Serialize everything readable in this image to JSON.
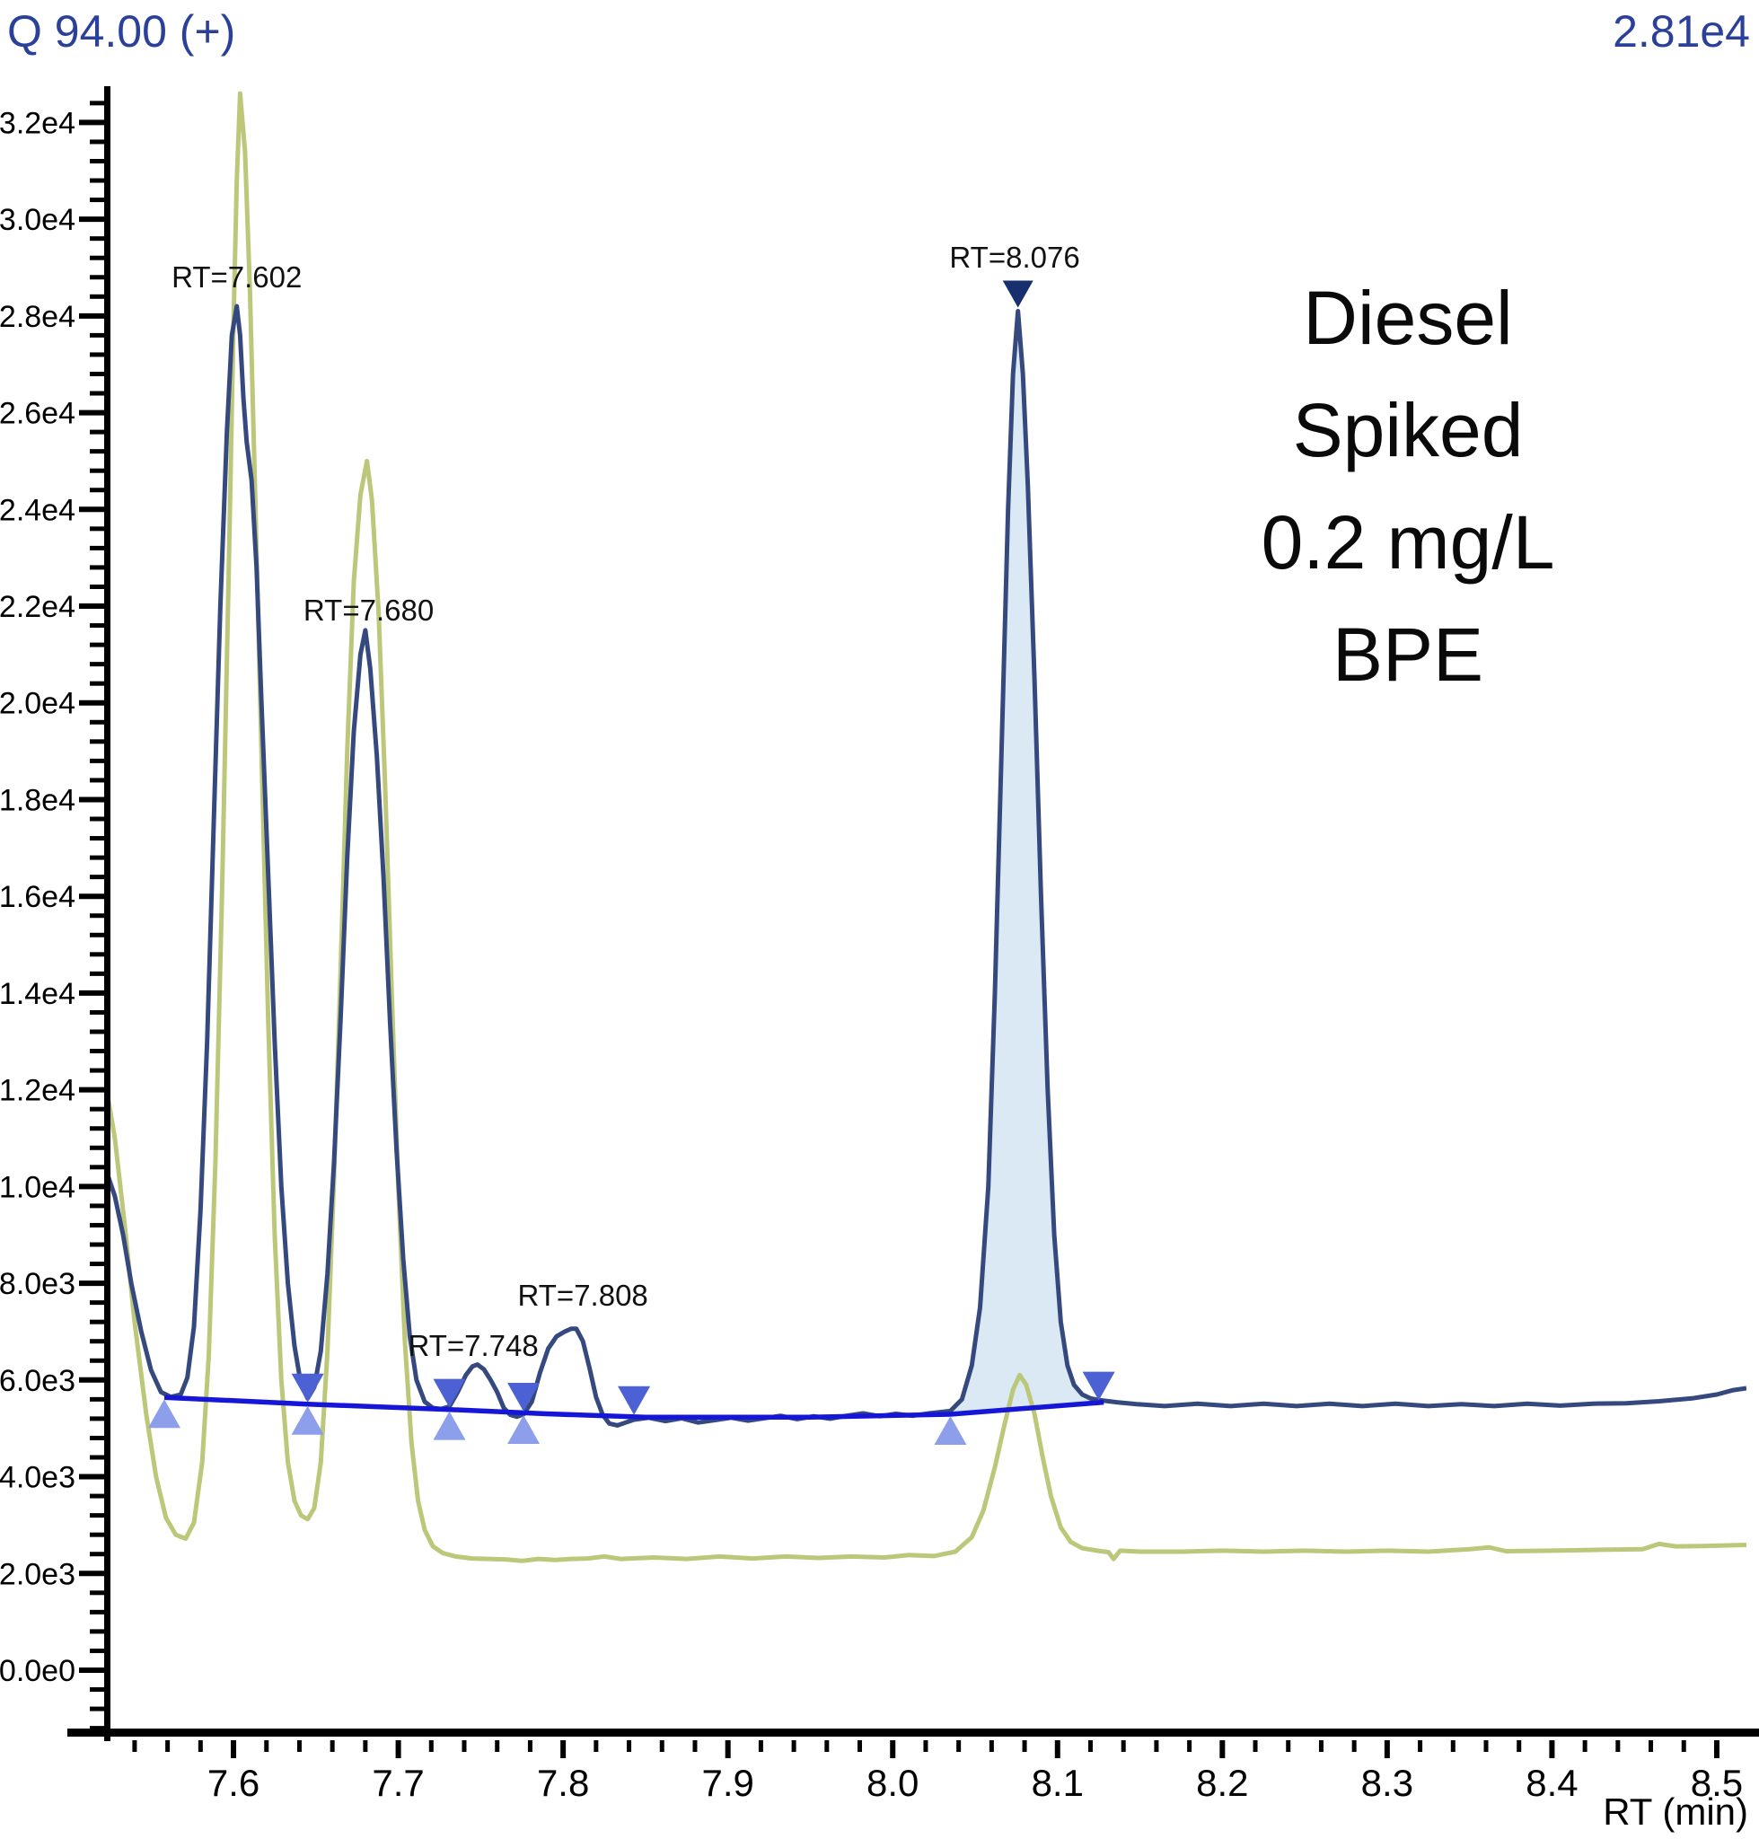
{
  "header": {
    "channel": "Q 94.00 (+)",
    "max_intensity": "2.81e4"
  },
  "annotation": {
    "lines": [
      "Diesel",
      "Spiked",
      "0.2 mg/L",
      "BPE"
    ]
  },
  "colors": {
    "navy": "#35497E",
    "olive": "#BDC77A",
    "baseline_blue": "#1616D9",
    "peak_fill": "#DAE9F3",
    "marker_up": "#8D9EEA",
    "marker_down": "#4C61D4",
    "marker_apex": "#182F6D",
    "header_text": "#2B4199",
    "axis_black": "#000000"
  },
  "chart_data": {
    "type": "line",
    "title": "Diesel Spiked 0.2 mg/L BPE",
    "xlabel": "RT (min)",
    "ylabel": "",
    "legend": "none",
    "grid": false,
    "axes": {
      "x": {
        "min": 7.5237,
        "max": 8.518,
        "minor_step": 0.02,
        "major_step": 0.1,
        "ticks": [
          {
            "v": 7.6,
            "t": "7.6"
          },
          {
            "v": 7.7,
            "t": "7.7"
          },
          {
            "v": 7.8,
            "t": "7.8"
          },
          {
            "v": 7.9,
            "t": "7.9"
          },
          {
            "v": 8.0,
            "t": "8.0"
          },
          {
            "v": 8.1,
            "t": "8.1"
          },
          {
            "v": 8.2,
            "t": "8.2"
          },
          {
            "v": 8.3,
            "t": "8.3"
          },
          {
            "v": 8.4,
            "t": "8.4"
          },
          {
            "v": 8.5,
            "t": "8.5"
          }
        ]
      },
      "y": {
        "min": -1300,
        "max": 32750,
        "major_step": 2000,
        "minor_step": 400,
        "ticks": [
          {
            "v": 0,
            "t": "0.0e0"
          },
          {
            "v": 2000,
            "t": "2.0e3"
          },
          {
            "v": 4000,
            "t": "4.0e3"
          },
          {
            "v": 6000,
            "t": "6.0e3"
          },
          {
            "v": 8000,
            "t": "8.0e3"
          },
          {
            "v": 10000,
            "t": "1.0e4"
          },
          {
            "v": 12000,
            "t": "1.2e4"
          },
          {
            "v": 14000,
            "t": "1.4e4"
          },
          {
            "v": 16000,
            "t": "1.6e4"
          },
          {
            "v": 18000,
            "t": "1.8e4"
          },
          {
            "v": 20000,
            "t": "2.0e4"
          },
          {
            "v": 22000,
            "t": "2.2e4"
          },
          {
            "v": 24000,
            "t": "2.4e4"
          },
          {
            "v": 26000,
            "t": "2.6e4"
          },
          {
            "v": 28000,
            "t": "2.8e4"
          },
          {
            "v": 30000,
            "t": "3.0e4"
          },
          {
            "v": 32000,
            "t": "3.2e4"
          }
        ]
      }
    },
    "peak_labels": [
      {
        "text": "RT=7.602",
        "rt": 7.602,
        "v": 28800
      },
      {
        "text": "RT=7.680",
        "rt": 7.682,
        "v": 21900
      },
      {
        "text": "RT=7.748",
        "rt": 7.7455,
        "v": 6700
      },
      {
        "text": "RT=7.808",
        "rt": 7.812,
        "v": 7750
      },
      {
        "text": "RT=8.076",
        "rt": 8.074,
        "v": 29200
      }
    ],
    "markers": [
      {
        "rt": 7.558,
        "v": 5640,
        "type": "start"
      },
      {
        "rt": 7.645,
        "v": 5500,
        "type": "valley"
      },
      {
        "rt": 7.731,
        "v": 5390,
        "type": "valley"
      },
      {
        "rt": 7.776,
        "v": 5310,
        "type": "valley"
      },
      {
        "rt": 7.843,
        "v": 5240,
        "type": "end"
      },
      {
        "rt": 8.035,
        "v": 5290,
        "type": "start"
      },
      {
        "rt": 8.125,
        "v": 5540,
        "type": "end"
      },
      {
        "rt": 8.076,
        "v": 28100,
        "type": "apex"
      }
    ],
    "baseline": {
      "points": [
        [
          7.558,
          5640
        ],
        [
          7.645,
          5500
        ],
        [
          7.731,
          5390
        ],
        [
          7.79,
          5300
        ],
        [
          7.85,
          5230
        ],
        [
          7.95,
          5230
        ],
        [
          8.035,
          5290
        ],
        [
          8.128,
          5540
        ]
      ]
    },
    "fill_region": {
      "from": 8.034,
      "to": 8.127
    },
    "series": [
      {
        "name": "olive-trace",
        "color_key": "olive",
        "points": [
          [
            7.524,
            11800
          ],
          [
            7.528,
            11000
          ],
          [
            7.534,
            9200
          ],
          [
            7.54,
            7200
          ],
          [
            7.547,
            5300
          ],
          [
            7.553,
            4000
          ],
          [
            7.559,
            3150
          ],
          [
            7.565,
            2800
          ],
          [
            7.571,
            2720
          ],
          [
            7.576,
            3050
          ],
          [
            7.581,
            4300
          ],
          [
            7.585,
            6500
          ],
          [
            7.589,
            10500
          ],
          [
            7.593,
            16000
          ],
          [
            7.597,
            22500
          ],
          [
            7.6,
            27800
          ],
          [
            7.602,
            30800
          ],
          [
            7.604,
            32600
          ],
          [
            7.607,
            31400
          ],
          [
            7.61,
            28500
          ],
          [
            7.613,
            24500
          ],
          [
            7.617,
            19000
          ],
          [
            7.621,
            13500
          ],
          [
            7.625,
            9000
          ],
          [
            7.629,
            6000
          ],
          [
            7.633,
            4300
          ],
          [
            7.637,
            3500
          ],
          [
            7.641,
            3200
          ],
          [
            7.645,
            3120
          ],
          [
            7.649,
            3350
          ],
          [
            7.653,
            4300
          ],
          [
            7.657,
            6600
          ],
          [
            7.661,
            10200
          ],
          [
            7.665,
            14500
          ],
          [
            7.669,
            19000
          ],
          [
            7.673,
            22500
          ],
          [
            7.677,
            24300
          ],
          [
            7.681,
            25000
          ],
          [
            7.684,
            24200
          ],
          [
            7.688,
            21900
          ],
          [
            7.692,
            18300
          ],
          [
            7.696,
            14000
          ],
          [
            7.7,
            10000
          ],
          [
            7.704,
            6800
          ],
          [
            7.708,
            4700
          ],
          [
            7.712,
            3500
          ],
          [
            7.716,
            2900
          ],
          [
            7.721,
            2560
          ],
          [
            7.727,
            2420
          ],
          [
            7.735,
            2350
          ],
          [
            7.745,
            2310
          ],
          [
            7.755,
            2300
          ],
          [
            7.765,
            2290
          ],
          [
            7.775,
            2260
          ],
          [
            7.785,
            2300
          ],
          [
            7.795,
            2280
          ],
          [
            7.805,
            2300
          ],
          [
            7.815,
            2310
          ],
          [
            7.825,
            2350
          ],
          [
            7.835,
            2300
          ],
          [
            7.855,
            2330
          ],
          [
            7.875,
            2300
          ],
          [
            7.895,
            2350
          ],
          [
            7.915,
            2310
          ],
          [
            7.935,
            2350
          ],
          [
            7.955,
            2320
          ],
          [
            7.975,
            2350
          ],
          [
            7.995,
            2330
          ],
          [
            8.01,
            2380
          ],
          [
            8.025,
            2360
          ],
          [
            8.038,
            2450
          ],
          [
            8.048,
            2750
          ],
          [
            8.055,
            3300
          ],
          [
            8.062,
            4200
          ],
          [
            8.068,
            5100
          ],
          [
            8.073,
            5800
          ],
          [
            8.077,
            6100
          ],
          [
            8.081,
            5900
          ],
          [
            8.086,
            5300
          ],
          [
            8.091,
            4400
          ],
          [
            8.096,
            3600
          ],
          [
            8.102,
            2950
          ],
          [
            8.108,
            2650
          ],
          [
            8.115,
            2520
          ],
          [
            8.124,
            2470
          ],
          [
            8.131,
            2440
          ],
          [
            8.134,
            2300
          ],
          [
            8.138,
            2470
          ],
          [
            8.15,
            2450
          ],
          [
            8.175,
            2450
          ],
          [
            8.2,
            2470
          ],
          [
            8.225,
            2450
          ],
          [
            8.25,
            2470
          ],
          [
            8.275,
            2450
          ],
          [
            8.3,
            2470
          ],
          [
            8.325,
            2450
          ],
          [
            8.35,
            2500
          ],
          [
            8.362,
            2540
          ],
          [
            8.372,
            2460
          ],
          [
            8.4,
            2470
          ],
          [
            8.43,
            2490
          ],
          [
            8.455,
            2500
          ],
          [
            8.465,
            2610
          ],
          [
            8.475,
            2560
          ],
          [
            8.495,
            2570
          ],
          [
            8.518,
            2590
          ]
        ]
      },
      {
        "name": "navy-trace",
        "color_key": "navy",
        "points": [
          [
            7.524,
            10200
          ],
          [
            7.528,
            9800
          ],
          [
            7.533,
            9000
          ],
          [
            7.538,
            8000
          ],
          [
            7.544,
            7000
          ],
          [
            7.55,
            6200
          ],
          [
            7.556,
            5750
          ],
          [
            7.562,
            5650
          ],
          [
            7.568,
            5700
          ],
          [
            7.572,
            6050
          ],
          [
            7.576,
            7100
          ],
          [
            7.58,
            9500
          ],
          [
            7.584,
            13000
          ],
          [
            7.588,
            17500
          ],
          [
            7.592,
            22000
          ],
          [
            7.596,
            25600
          ],
          [
            7.599,
            27600
          ],
          [
            7.602,
            28200
          ],
          [
            7.604,
            27600
          ],
          [
            7.606,
            26300
          ],
          [
            7.608,
            25400
          ],
          [
            7.611,
            24600
          ],
          [
            7.614,
            22800
          ],
          [
            7.617,
            20000
          ],
          [
            7.621,
            16500
          ],
          [
            7.625,
            13000
          ],
          [
            7.629,
            10000
          ],
          [
            7.633,
            8000
          ],
          [
            7.637,
            6700
          ],
          [
            7.641,
            5900
          ],
          [
            7.645,
            5620
          ],
          [
            7.649,
            5850
          ],
          [
            7.653,
            6600
          ],
          [
            7.657,
            8200
          ],
          [
            7.661,
            10500
          ],
          [
            7.665,
            13500
          ],
          [
            7.669,
            16800
          ],
          [
            7.673,
            19400
          ],
          [
            7.677,
            21000
          ],
          [
            7.68,
            21500
          ],
          [
            7.683,
            20700
          ],
          [
            7.687,
            18900
          ],
          [
            7.691,
            16400
          ],
          [
            7.695,
            13400
          ],
          [
            7.699,
            10700
          ],
          [
            7.703,
            8500
          ],
          [
            7.707,
            6900
          ],
          [
            7.711,
            6000
          ],
          [
            7.716,
            5550
          ],
          [
            7.721,
            5420
          ],
          [
            7.726,
            5400
          ],
          [
            7.731,
            5450
          ],
          [
            7.736,
            5750
          ],
          [
            7.741,
            6100
          ],
          [
            7.745,
            6280
          ],
          [
            7.748,
            6320
          ],
          [
            7.752,
            6220
          ],
          [
            7.756,
            6000
          ],
          [
            7.76,
            5750
          ],
          [
            7.764,
            5420
          ],
          [
            7.768,
            5280
          ],
          [
            7.772,
            5240
          ],
          [
            7.776,
            5290
          ],
          [
            7.781,
            5550
          ],
          [
            7.786,
            6150
          ],
          [
            7.791,
            6650
          ],
          [
            7.796,
            6900
          ],
          [
            7.801,
            7000
          ],
          [
            7.805,
            7060
          ],
          [
            7.808,
            7060
          ],
          [
            7.812,
            6800
          ],
          [
            7.816,
            6250
          ],
          [
            7.82,
            5650
          ],
          [
            7.824,
            5280
          ],
          [
            7.828,
            5100
          ],
          [
            7.833,
            5060
          ],
          [
            7.838,
            5120
          ],
          [
            7.843,
            5180
          ],
          [
            7.852,
            5220
          ],
          [
            7.862,
            5150
          ],
          [
            7.872,
            5210
          ],
          [
            7.882,
            5120
          ],
          [
            7.892,
            5170
          ],
          [
            7.902,
            5220
          ],
          [
            7.912,
            5160
          ],
          [
            7.922,
            5210
          ],
          [
            7.932,
            5260
          ],
          [
            7.942,
            5190
          ],
          [
            7.952,
            5250
          ],
          [
            7.962,
            5200
          ],
          [
            7.972,
            5260
          ],
          [
            7.982,
            5310
          ],
          [
            7.992,
            5250
          ],
          [
            8.002,
            5300
          ],
          [
            8.012,
            5260
          ],
          [
            8.022,
            5310
          ],
          [
            8.035,
            5360
          ],
          [
            8.042,
            5600
          ],
          [
            8.048,
            6300
          ],
          [
            8.053,
            7500
          ],
          [
            8.058,
            10000
          ],
          [
            8.062,
            14000
          ],
          [
            8.066,
            19000
          ],
          [
            8.07,
            24000
          ],
          [
            8.073,
            26800
          ],
          [
            8.076,
            28100
          ],
          [
            8.079,
            26800
          ],
          [
            8.082,
            24500
          ],
          [
            8.086,
            20500
          ],
          [
            8.09,
            16000
          ],
          [
            8.094,
            12000
          ],
          [
            8.098,
            9000
          ],
          [
            8.102,
            7200
          ],
          [
            8.106,
            6300
          ],
          [
            8.11,
            5900
          ],
          [
            8.115,
            5700
          ],
          [
            8.12,
            5620
          ],
          [
            8.126,
            5580
          ],
          [
            8.136,
            5540
          ],
          [
            8.148,
            5500
          ],
          [
            8.165,
            5460
          ],
          [
            8.185,
            5510
          ],
          [
            8.205,
            5460
          ],
          [
            8.225,
            5510
          ],
          [
            8.245,
            5460
          ],
          [
            8.265,
            5510
          ],
          [
            8.285,
            5460
          ],
          [
            8.305,
            5510
          ],
          [
            8.325,
            5460
          ],
          [
            8.345,
            5500
          ],
          [
            8.365,
            5460
          ],
          [
            8.385,
            5510
          ],
          [
            8.405,
            5470
          ],
          [
            8.425,
            5510
          ],
          [
            8.445,
            5520
          ],
          [
            8.465,
            5560
          ],
          [
            8.485,
            5620
          ],
          [
            8.5,
            5700
          ],
          [
            8.51,
            5790
          ],
          [
            8.518,
            5830
          ]
        ]
      }
    ]
  }
}
